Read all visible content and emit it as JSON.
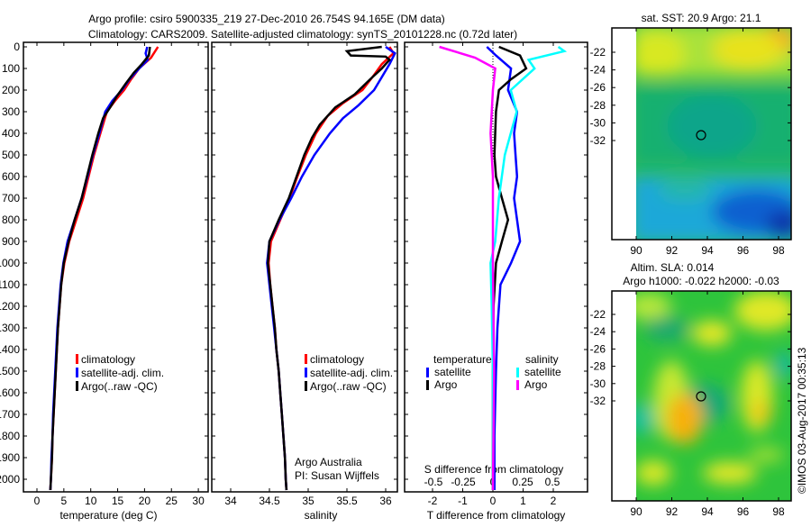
{
  "title": {
    "line1": "Argo profile: csiro 5900335_219 27-Dec-2010 26.754S 94.165E (DM data)",
    "line2": "Climatology: CARS2009. Satellite-adjusted climatology: synTS_20101228.nc (0.72d later)"
  },
  "credit": {
    "institution": "Argo Australia",
    "pi": "PI: Susan Wijffels",
    "stamp": "©IMOS 03-Aug-2017 00:35:13"
  },
  "colors": {
    "climatology": "#ff0000",
    "satellite": "#0000ff",
    "argo": "#000000",
    "salinity_satellite": "#00ffff",
    "salinity_argo": "#ff00ff"
  },
  "chart_data": [
    {
      "type": "line",
      "id": "temperature",
      "xlabel": "temperature (deg C)",
      "ylabel": "",
      "xlim": [
        -2.5,
        31.5
      ],
      "ylim": [
        2060,
        -20
      ],
      "xticks": [
        0,
        5,
        10,
        15,
        20,
        25,
        30
      ],
      "yticks": [
        0,
        100,
        200,
        300,
        400,
        500,
        600,
        700,
        800,
        900,
        1000,
        1100,
        1200,
        1300,
        1400,
        1500,
        1600,
        1700,
        1800,
        1900,
        2000
      ],
      "legend": {
        "placement": "lower-middle",
        "entries": [
          "climatology",
          "satellite-adj. clim.",
          "Argo(..raw -QC)"
        ]
      },
      "series": [
        {
          "name": "climatology",
          "color": "#ff0000",
          "points": [
            [
              22.5,
              0
            ],
            [
              21.2,
              50
            ],
            [
              19,
              100
            ],
            [
              17.5,
              150
            ],
            [
              16.2,
              200
            ],
            [
              14.5,
              250
            ],
            [
              13,
              300
            ],
            [
              11.8,
              400
            ],
            [
              10.6,
              500
            ],
            [
              9.6,
              600
            ],
            [
              8.6,
              700
            ],
            [
              7.3,
              800
            ],
            [
              6,
              900
            ],
            [
              5.1,
              1000
            ],
            [
              4.5,
              1100
            ],
            [
              4.2,
              1200
            ],
            [
              3.9,
              1300
            ],
            [
              3.7,
              1400
            ],
            [
              3.5,
              1500
            ],
            [
              3.3,
              1600
            ],
            [
              3.1,
              1700
            ],
            [
              2.9,
              1800
            ],
            [
              2.8,
              1900
            ],
            [
              2.6,
              2000
            ],
            [
              2.5,
              2050
            ]
          ]
        },
        {
          "name": "satellite-adj. clim.",
          "color": "#0000ff",
          "points": [
            [
              20.5,
              0
            ],
            [
              20.2,
              30
            ],
            [
              20.6,
              60
            ],
            [
              19,
              100
            ],
            [
              17.2,
              150
            ],
            [
              15.8,
              200
            ],
            [
              14,
              250
            ],
            [
              12.7,
              300
            ],
            [
              11.6,
              400
            ],
            [
              10.4,
              500
            ],
            [
              9.4,
              600
            ],
            [
              8.3,
              700
            ],
            [
              7,
              800
            ],
            [
              5.7,
              900
            ],
            [
              4.9,
              1000
            ],
            [
              4.4,
              1100
            ],
            [
              4.1,
              1200
            ],
            [
              3.8,
              1300
            ],
            [
              3.6,
              1400
            ],
            [
              3.4,
              1500
            ],
            [
              3.2,
              1600
            ],
            [
              3,
              1700
            ],
            [
              2.9,
              1800
            ],
            [
              2.7,
              1900
            ],
            [
              2.6,
              2000
            ],
            [
              2.5,
              2050
            ]
          ]
        },
        {
          "name": "Argo(..raw -QC)",
          "color": "#000000",
          "points": [
            [
              21,
              0
            ],
            [
              20.8,
              40
            ],
            [
              19.5,
              80
            ],
            [
              18,
              120
            ],
            [
              16.5,
              170
            ],
            [
              14.8,
              230
            ],
            [
              13.6,
              280
            ],
            [
              12.3,
              330
            ],
            [
              11.4,
              400
            ],
            [
              10.3,
              500
            ],
            [
              9.3,
              600
            ],
            [
              8.3,
              700
            ],
            [
              7,
              800
            ],
            [
              5.9,
              900
            ],
            [
              5,
              1000
            ],
            [
              4.5,
              1100
            ],
            [
              4.2,
              1200
            ],
            [
              3.9,
              1300
            ],
            [
              3.7,
              1400
            ],
            [
              3.5,
              1500
            ],
            [
              3.3,
              1600
            ],
            [
              3.1,
              1700
            ],
            [
              2.9,
              1800
            ],
            [
              2.8,
              1900
            ],
            [
              2.6,
              2000
            ],
            [
              2.5,
              2050
            ]
          ]
        }
      ]
    },
    {
      "type": "line",
      "id": "salinity",
      "xlabel": "salinity",
      "xlim": [
        33.75,
        36.15
      ],
      "ylim": [
        2060,
        -20
      ],
      "xticks": [
        34,
        34.5,
        35,
        35.5,
        36
      ],
      "legend": {
        "placement": "lower-right",
        "entries": [
          "climatology",
          "satellite-adj. clim.",
          "Argo(..raw -QC)"
        ]
      },
      "series": [
        {
          "name": "climatology",
          "color": "#ff0000",
          "points": [
            [
              36.05,
              0
            ],
            [
              36.1,
              30
            ],
            [
              35.95,
              80
            ],
            [
              35.85,
              130
            ],
            [
              35.7,
              200
            ],
            [
              35.45,
              260
            ],
            [
              35.25,
              320
            ],
            [
              35.1,
              400
            ],
            [
              34.97,
              500
            ],
            [
              34.86,
              600
            ],
            [
              34.76,
              700
            ],
            [
              34.64,
              800
            ],
            [
              34.52,
              900
            ],
            [
              34.49,
              1000
            ],
            [
              34.51,
              1100
            ],
            [
              34.54,
              1200
            ],
            [
              34.57,
              1300
            ],
            [
              34.59,
              1400
            ],
            [
              34.62,
              1500
            ],
            [
              34.64,
              1600
            ],
            [
              34.66,
              1700
            ],
            [
              34.68,
              1800
            ],
            [
              34.7,
              1900
            ],
            [
              34.71,
              2000
            ],
            [
              34.72,
              2050
            ]
          ]
        },
        {
          "name": "satellite-adj. clim.",
          "color": "#0000ff",
          "points": [
            [
              36.0,
              0
            ],
            [
              36.12,
              30
            ],
            [
              36.05,
              80
            ],
            [
              35.95,
              140
            ],
            [
              35.85,
              200
            ],
            [
              35.65,
              270
            ],
            [
              35.45,
              330
            ],
            [
              35.28,
              400
            ],
            [
              35.08,
              500
            ],
            [
              34.92,
              600
            ],
            [
              34.78,
              700
            ],
            [
              34.63,
              800
            ],
            [
              34.5,
              900
            ],
            [
              34.47,
              1000
            ],
            [
              34.5,
              1100
            ],
            [
              34.53,
              1200
            ],
            [
              34.56,
              1300
            ],
            [
              34.59,
              1400
            ],
            [
              34.62,
              1500
            ],
            [
              34.64,
              1600
            ],
            [
              34.66,
              1700
            ],
            [
              34.68,
              1800
            ],
            [
              34.7,
              1900
            ],
            [
              34.71,
              2000
            ],
            [
              34.72,
              2050
            ]
          ]
        },
        {
          "name": "Argo(..raw -QC)",
          "color": "#000000",
          "points": [
            [
              35.95,
              0
            ],
            [
              35.5,
              20
            ],
            [
              35.55,
              40
            ],
            [
              36.0,
              45
            ],
            [
              36.05,
              60
            ],
            [
              35.95,
              100
            ],
            [
              35.8,
              150
            ],
            [
              35.6,
              220
            ],
            [
              35.35,
              280
            ],
            [
              35.15,
              360
            ],
            [
              35.05,
              420
            ],
            [
              34.95,
              500
            ],
            [
              34.85,
              600
            ],
            [
              34.75,
              700
            ],
            [
              34.62,
              800
            ],
            [
              34.5,
              900
            ],
            [
              34.48,
              1000
            ],
            [
              34.51,
              1100
            ],
            [
              34.54,
              1200
            ],
            [
              34.57,
              1300
            ],
            [
              34.59,
              1400
            ],
            [
              34.62,
              1500
            ],
            [
              34.64,
              1600
            ],
            [
              34.66,
              1700
            ],
            [
              34.68,
              1800
            ],
            [
              34.7,
              1900
            ],
            [
              34.71,
              2000
            ],
            [
              34.72,
              2050
            ]
          ]
        }
      ]
    },
    {
      "type": "line",
      "id": "difference",
      "xlabel": "T difference from climatology",
      "x2label": "S difference from climatology",
      "xlim": [
        -3,
        3
      ],
      "ylim": [
        2060,
        -20
      ],
      "xticks": [
        -2,
        -1,
        0,
        1,
        2
      ],
      "x2ticks": [
        -0.5,
        -0.25,
        0,
        0.25,
        0.5
      ],
      "legend": {
        "placement": "lower-middle",
        "temperature_title": "temperature",
        "salinity_title": "salinity",
        "entries": [
          "satellite",
          "Argo",
          "satellite",
          "Argo"
        ]
      },
      "series": [
        {
          "name": "temperature satellite",
          "color": "#0000ff",
          "axis": "T",
          "points": [
            [
              -0.2,
              0
            ],
            [
              0.1,
              40
            ],
            [
              0.6,
              100
            ],
            [
              0.5,
              200
            ],
            [
              0.8,
              300
            ],
            [
              0.7,
              400
            ],
            [
              0.75,
              500
            ],
            [
              0.8,
              600
            ],
            [
              0.7,
              700
            ],
            [
              0.8,
              800
            ],
            [
              0.9,
              900
            ],
            [
              0.6,
              1000
            ],
            [
              0.25,
              1100
            ],
            [
              0.15,
              1300
            ],
            [
              0.1,
              1500
            ],
            [
              0.05,
              1800
            ],
            [
              0.05,
              2050
            ]
          ]
        },
        {
          "name": "temperature Argo",
          "color": "#000000",
          "axis": "T",
          "points": [
            [
              0.2,
              0
            ],
            [
              0.9,
              40
            ],
            [
              1.1,
              100
            ],
            [
              0.6,
              150
            ],
            [
              0.2,
              200
            ],
            [
              0.1,
              300
            ],
            [
              0.05,
              500
            ],
            [
              0.1,
              600
            ],
            [
              0.3,
              700
            ],
            [
              0.5,
              800
            ],
            [
              0.3,
              900
            ],
            [
              0.1,
              1000
            ],
            [
              0.02,
              1200
            ],
            [
              0,
              1500
            ],
            [
              0,
              2050
            ]
          ]
        },
        {
          "name": "salinity satellite",
          "color": "#00ffff",
          "axis": "S",
          "points": [
            [
              0.55,
              0
            ],
            [
              0.6,
              20
            ],
            [
              0.3,
              60
            ],
            [
              0.35,
              100
            ],
            [
              0.15,
              200
            ],
            [
              0.2,
              300
            ],
            [
              0.1,
              500
            ],
            [
              0.05,
              700
            ],
            [
              0.02,
              900
            ],
            [
              -0.02,
              1000
            ],
            [
              -0.01,
              1200
            ],
            [
              0,
              1500
            ],
            [
              0,
              2050
            ]
          ]
        },
        {
          "name": "salinity Argo",
          "color": "#ff00ff",
          "axis": "S",
          "points": [
            [
              -0.45,
              0
            ],
            [
              -0.15,
              50
            ],
            [
              0.02,
              100
            ],
            [
              0,
              200
            ],
            [
              -0.02,
              400
            ],
            [
              0,
              600
            ],
            [
              0,
              1000
            ],
            [
              0.01,
              1500
            ],
            [
              0,
              2050
            ]
          ]
        }
      ]
    },
    {
      "type": "heatmap",
      "id": "sst-map",
      "title": "sat. SST: 20.9 Argo: 21.1",
      "xticks": [
        90,
        92,
        94,
        96,
        98
      ],
      "yticks": [
        -22,
        -24,
        -26,
        -28,
        -30,
        -32
      ],
      "float_position": [
        94.165,
        -26.754
      ]
    },
    {
      "type": "heatmap",
      "id": "sla-map",
      "title1": "Altim. SLA: 0.014",
      "title2": "Argo h1000: -0.022 h2000: -0.03",
      "xticks": [
        90,
        92,
        94,
        96,
        98
      ],
      "yticks": [
        -22,
        -24,
        -26,
        -28,
        -30,
        -32
      ],
      "float_position": [
        94.165,
        -26.754
      ]
    }
  ]
}
